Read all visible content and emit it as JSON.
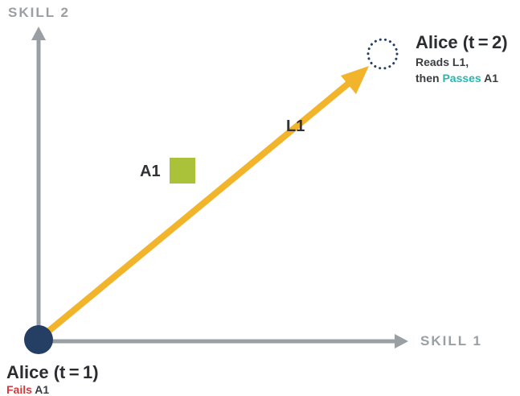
{
  "axes": {
    "x_label": "SKILL 1",
    "y_label": "SKILL 2"
  },
  "start": {
    "title": "Alice (t = 1)",
    "status_word": "Fails",
    "status_rest": " A1"
  },
  "end": {
    "title": "Alice (t = 2)",
    "line1": "Reads L1,",
    "line2_prefix": "then ",
    "status_word": "Passes",
    "status_rest": " A1"
  },
  "lesson": {
    "label": "L1"
  },
  "assessment": {
    "label": "A1"
  },
  "colors": {
    "axis": "#9a9fa4",
    "arrow": "#f2b42b",
    "start_node": "#243f63",
    "end_node": "#243f63",
    "assessment": "#a9c23a",
    "fail": "#d63a3a",
    "pass": "#25b7b0"
  }
}
